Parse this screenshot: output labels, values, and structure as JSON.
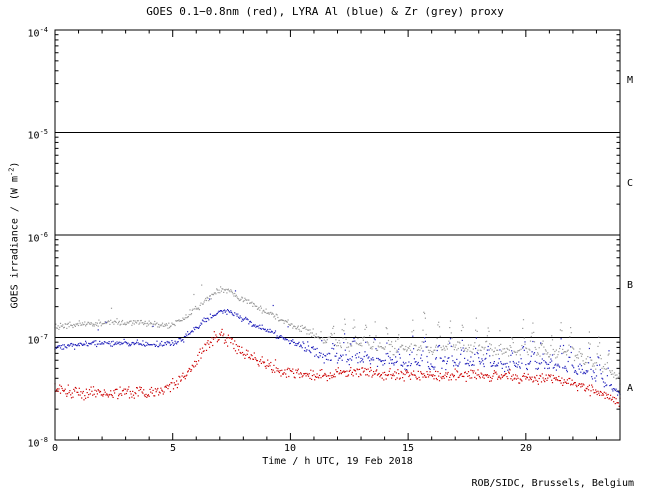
{
  "title": "GOES 0.1−0.8nm (red), LYRA Al (blue) & Zr (grey) proxy",
  "credit": "ROB/SIDC, Brussels, Belgium",
  "chart_data": {
    "type": "scatter",
    "title": "GOES 0.1−0.8nm (red), LYRA Al (blue) & Zr (grey) proxy",
    "xlabel": "Time / h UTC, 19 Feb 2018",
    "ylabel_prefix": "GOES irradiance / (W m",
    "ylabel_sup": "-2",
    "ylabel_suffix": ")",
    "xlim": [
      0,
      24
    ],
    "x_major_ticks": [
      0,
      5,
      10,
      15,
      20
    ],
    "x_minor_step": 1,
    "y_scale": "log",
    "ylim": [
      1e-08,
      0.0001
    ],
    "y_ticks": [
      {
        "base": "10",
        "exp": "-4"
      },
      {
        "base": "10",
        "exp": "-5"
      },
      {
        "base": "10",
        "exp": "-6"
      },
      {
        "base": "10",
        "exp": "-7"
      },
      {
        "base": "10",
        "exp": "-8"
      }
    ],
    "hlines": [
      1e-05,
      1e-06,
      1e-07
    ],
    "class_labels": [
      {
        "label": "M"
      },
      {
        "label": "C"
      },
      {
        "label": "B"
      },
      {
        "label": "A"
      }
    ],
    "colors": {
      "red": "#cc0000",
      "blue": "#2222bb",
      "grey": "#9a9a9a"
    },
    "grid": false,
    "legend": "in-title",
    "spike_hours": [
      11.8,
      12.3,
      12.7,
      13.2,
      13.6,
      14.1,
      14.6,
      15.2,
      15.7,
      16.3,
      16.8,
      17.3,
      17.9,
      18.4,
      18.9,
      19.4,
      19.9,
      20.3,
      20.7,
      21.1,
      21.5,
      21.9,
      22.3,
      22.7,
      23.1,
      23.5
    ],
    "series": [
      {
        "name": "LYRA Zr proxy",
        "color_key": "grey",
        "noise": [
          0.03,
          0.055
        ],
        "spike_scale": 1.0,
        "keypoints": [
          [
            0,
            1.28e-07
          ],
          [
            0.5,
            1.32e-07
          ],
          [
            1,
            1.35e-07
          ],
          [
            2,
            1.4e-07
          ],
          [
            3,
            1.4e-07
          ],
          [
            4,
            1.37e-07
          ],
          [
            4.5,
            1.33e-07
          ],
          [
            5,
            1.35e-07
          ],
          [
            5.5,
            1.55e-07
          ],
          [
            6,
            1.9e-07
          ],
          [
            6.5,
            2.4e-07
          ],
          [
            7,
            2.85e-07
          ],
          [
            7.3,
            2.9e-07
          ],
          [
            7.5,
            2.75e-07
          ],
          [
            8,
            2.3e-07
          ],
          [
            8.5,
            2e-07
          ],
          [
            9,
            1.75e-07
          ],
          [
            9.5,
            1.55e-07
          ],
          [
            10,
            1.35e-07
          ],
          [
            10.5,
            1.18e-07
          ],
          [
            11,
            1.05e-07
          ],
          [
            11.5,
            9.4e-08
          ],
          [
            12,
            8.8e-08
          ],
          [
            12.5,
            8.4e-08
          ],
          [
            13,
            8.8e-08
          ],
          [
            13.5,
            8.3e-08
          ],
          [
            14,
            8e-08
          ],
          [
            15,
            7.7e-08
          ],
          [
            16,
            7.5e-08
          ],
          [
            17,
            7.9e-08
          ],
          [
            18,
            7.6e-08
          ],
          [
            19,
            7.4e-08
          ],
          [
            20,
            7.3e-08
          ],
          [
            21,
            7.1e-08
          ],
          [
            22,
            6.6e-08
          ],
          [
            22.5,
            6.1e-08
          ],
          [
            23,
            5.4e-08
          ],
          [
            23.5,
            4.7e-08
          ],
          [
            24,
            3.9e-08
          ]
        ]
      },
      {
        "name": "LYRA Al proxy",
        "color_key": "blue",
        "noise": [
          0.03,
          0.055
        ],
        "spike_scale": 0.8,
        "keypoints": [
          [
            0,
            7.8e-08
          ],
          [
            0.5,
            8.2e-08
          ],
          [
            1,
            8.5e-08
          ],
          [
            2,
            8.8e-08
          ],
          [
            3,
            8.8e-08
          ],
          [
            4,
            8.6e-08
          ],
          [
            4.5,
            8.5e-08
          ],
          [
            5,
            8.8e-08
          ],
          [
            5.5,
            1e-07
          ],
          [
            6,
            1.25e-07
          ],
          [
            6.5,
            1.55e-07
          ],
          [
            7,
            1.8e-07
          ],
          [
            7.3,
            1.85e-07
          ],
          [
            7.5,
            1.75e-07
          ],
          [
            8,
            1.5e-07
          ],
          [
            8.5,
            1.32e-07
          ],
          [
            9,
            1.18e-07
          ],
          [
            9.5,
            1.05e-07
          ],
          [
            10,
            9.2e-08
          ],
          [
            10.5,
            8.2e-08
          ],
          [
            11,
            7.2e-08
          ],
          [
            11.5,
            6.5e-08
          ],
          [
            12,
            6e-08
          ],
          [
            12.5,
            6.1e-08
          ],
          [
            13,
            6.3e-08
          ],
          [
            13.5,
            6e-08
          ],
          [
            14,
            5.8e-08
          ],
          [
            15,
            5.6e-08
          ],
          [
            16,
            5.4e-08
          ],
          [
            17,
            5.8e-08
          ],
          [
            18,
            5.6e-08
          ],
          [
            19,
            5.4e-08
          ],
          [
            20,
            5.3e-08
          ],
          [
            21,
            5.2e-08
          ],
          [
            22,
            4.9e-08
          ],
          [
            22.5,
            4.5e-08
          ],
          [
            23,
            4.1e-08
          ],
          [
            23.5,
            3.5e-08
          ],
          [
            24,
            2.9e-08
          ]
        ]
      },
      {
        "name": "GOES 0.1-0.8nm",
        "color_key": "red",
        "noise": [
          0.06,
          0.055
        ],
        "spike_scale": 0.15,
        "keypoints": [
          [
            0,
            3.1e-08
          ],
          [
            0.5,
            3e-08
          ],
          [
            1,
            2.9e-08
          ],
          [
            2,
            2.85e-08
          ],
          [
            3,
            2.9e-08
          ],
          [
            4,
            3e-08
          ],
          [
            4.5,
            3.1e-08
          ],
          [
            5,
            3.4e-08
          ],
          [
            5.5,
            4.3e-08
          ],
          [
            6,
            6e-08
          ],
          [
            6.5,
            8.5e-08
          ],
          [
            6.9,
            1.04e-07
          ],
          [
            7.1,
            1.05e-07
          ],
          [
            7.5,
            9.2e-08
          ],
          [
            8,
            7.2e-08
          ],
          [
            8.5,
            6.1e-08
          ],
          [
            9,
            5.4e-08
          ],
          [
            9.5,
            4.9e-08
          ],
          [
            10,
            4.6e-08
          ],
          [
            10.5,
            4.3e-08
          ],
          [
            11,
            4.2e-08
          ],
          [
            11.5,
            4.3e-08
          ],
          [
            12,
            4.5e-08
          ],
          [
            12.5,
            4.6e-08
          ],
          [
            13,
            4.7e-08
          ],
          [
            13.5,
            4.5e-08
          ],
          [
            14,
            4.4e-08
          ],
          [
            15,
            4.3e-08
          ],
          [
            16,
            4.2e-08
          ],
          [
            17,
            4.4e-08
          ],
          [
            18,
            4.3e-08
          ],
          [
            19,
            4.2e-08
          ],
          [
            20,
            4.1e-08
          ],
          [
            21,
            3.9e-08
          ],
          [
            22,
            3.6e-08
          ],
          [
            22.5,
            3.3e-08
          ],
          [
            23,
            3e-08
          ],
          [
            23.5,
            2.7e-08
          ],
          [
            24,
            2.3e-08
          ]
        ]
      }
    ]
  }
}
